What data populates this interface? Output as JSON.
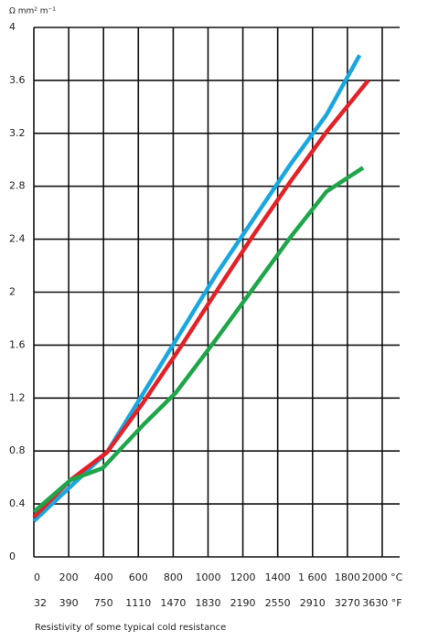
{
  "chart_data": {
    "type": "line",
    "y_label": "Ω mm² m⁻¹",
    "caption": "Resistivity of some typical cold resistance",
    "xlim": [
      0,
      2100
    ],
    "ylim": [
      0,
      4
    ],
    "xticks": [
      0,
      200,
      400,
      600,
      800,
      1000,
      1200,
      1400,
      {
        "value": 1600,
        "label": "1  600"
      },
      1800,
      {
        "value": 2000,
        "label": "2000 °C"
      }
    ],
    "xticks2": [
      {
        "value": 0,
        "label": "32"
      },
      {
        "value": 200,
        "label": "390"
      },
      {
        "value": 400,
        "label": "750"
      },
      {
        "value": 600,
        "label": "1110"
      },
      {
        "value": 800,
        "label": "1470"
      },
      {
        "value": 1000,
        "label": "1830"
      },
      {
        "value": 1200,
        "label": "2190"
      },
      {
        "value": 1400,
        "label": "2550"
      },
      {
        "value": 1600,
        "label": "2910"
      },
      {
        "value": 1800,
        "label": "3270"
      },
      {
        "value": 2000,
        "label": "3630 °F"
      }
    ],
    "yticks": [
      0,
      0.4,
      0.8,
      1.2,
      1.6,
      2.0,
      2.4,
      2.8,
      3.2,
      3.6,
      4.0
    ],
    "grid": true,
    "series": [
      {
        "color": "#1aa7e0",
        "x": [
          0,
          420,
          630,
          840,
          1050,
          1260,
          1470,
          1680,
          1870
        ],
        "values": [
          0.27,
          0.79,
          1.24,
          1.69,
          2.14,
          2.55,
          2.96,
          3.34,
          3.79
        ]
      },
      {
        "color": "#e32228",
        "x": [
          0,
          210,
          420,
          630,
          840,
          1050,
          1260,
          1470,
          1680,
          1920
        ],
        "values": [
          0.3,
          0.58,
          0.79,
          1.17,
          1.58,
          2.01,
          2.43,
          2.83,
          3.21,
          3.6
        ]
      },
      {
        "color": "#1fa64a",
        "x": [
          0,
          210,
          395,
          630,
          815,
          1050,
          1260,
          1470,
          1680,
          1890
        ],
        "values": [
          0.34,
          0.58,
          0.67,
          1.0,
          1.24,
          1.65,
          2.03,
          2.41,
          2.76,
          2.94
        ]
      }
    ]
  }
}
